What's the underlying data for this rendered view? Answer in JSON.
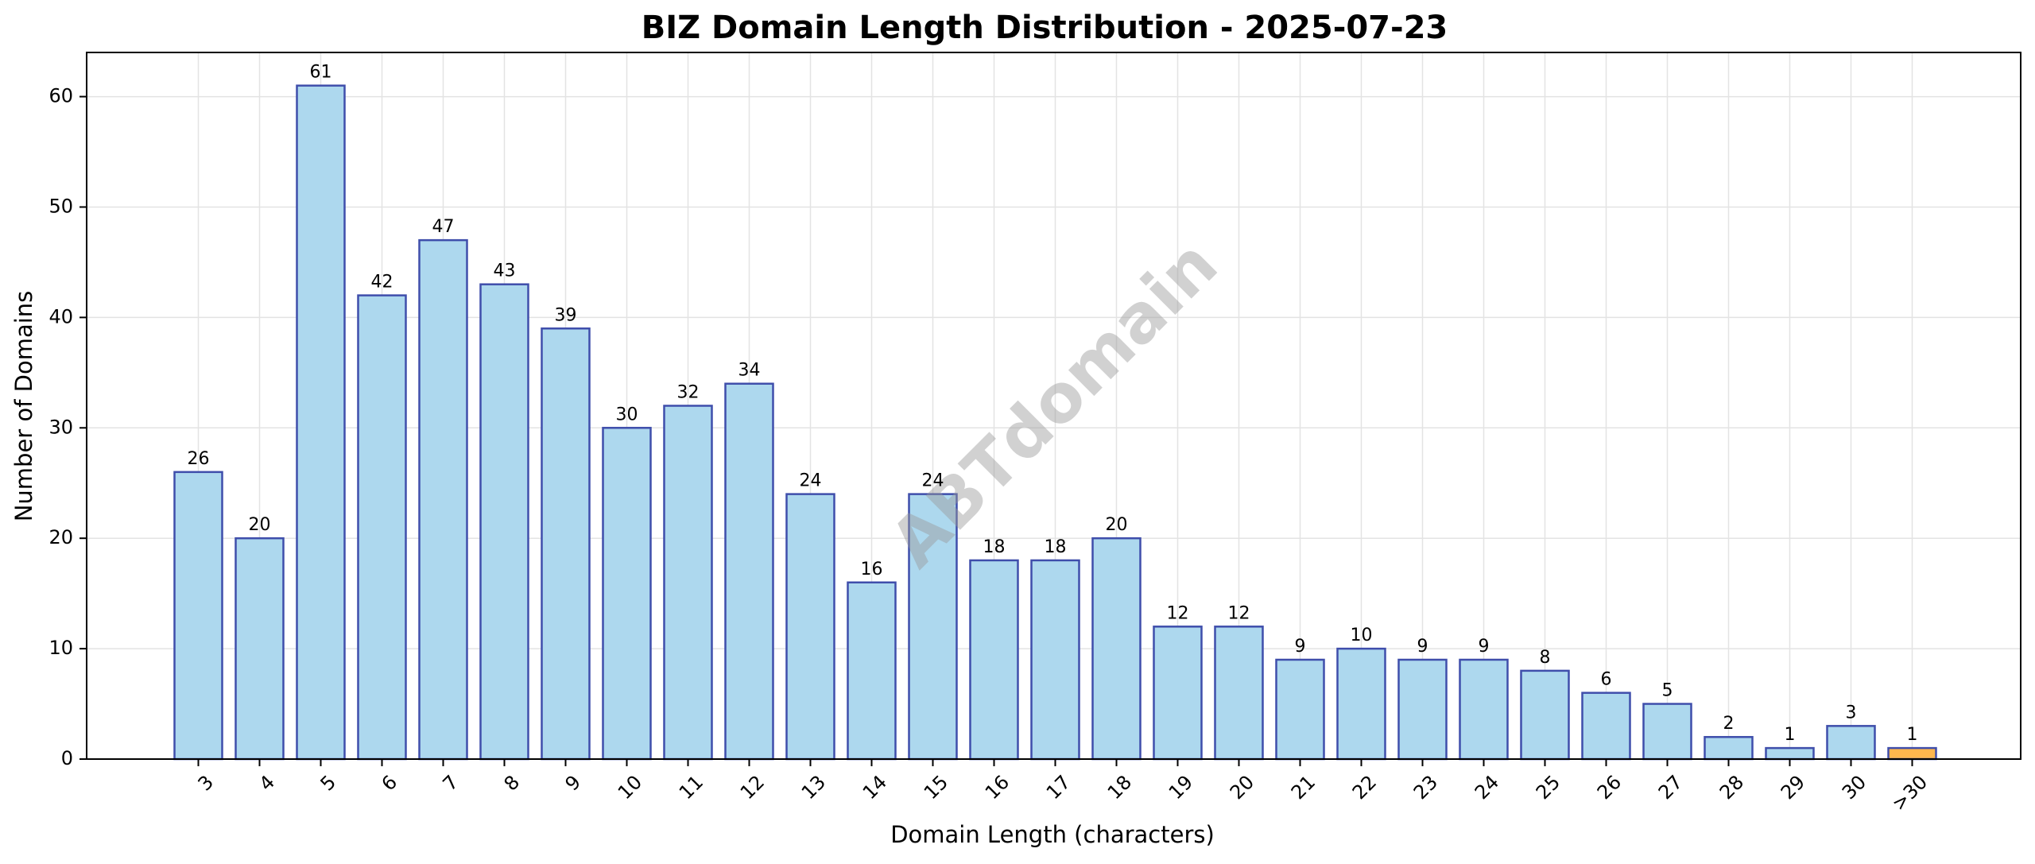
{
  "chart_data": {
    "type": "bar",
    "title": "BIZ Domain Length Distribution - 2025-07-23",
    "xlabel": "Domain Length (characters)",
    "ylabel": "Number of Domains",
    "categories": [
      "3",
      "4",
      "5",
      "6",
      "7",
      "8",
      "9",
      "10",
      "11",
      "12",
      "13",
      "14",
      "15",
      "16",
      "17",
      "18",
      "19",
      "20",
      "21",
      "22",
      "23",
      "24",
      "25",
      "26",
      "27",
      "28",
      "29",
      "30",
      ">30"
    ],
    "values": [
      26,
      20,
      61,
      42,
      47,
      43,
      39,
      30,
      32,
      34,
      24,
      16,
      24,
      18,
      18,
      20,
      12,
      12,
      9,
      10,
      9,
      9,
      8,
      6,
      5,
      2,
      1,
      3,
      1
    ],
    "ylim": [
      0,
      64
    ],
    "yticks": [
      0,
      10,
      20,
      30,
      40,
      50,
      60
    ],
    "grid": true,
    "colors": {
      "bar_fill": "#add8ee",
      "bar_edge": "#3f4eab",
      "highlight_fill": "#ffb74d",
      "highlight_edge": "#3f4eab",
      "grid": "#e3e3e3"
    },
    "highlight_category": ">30",
    "watermark": "ABTdomain"
  }
}
